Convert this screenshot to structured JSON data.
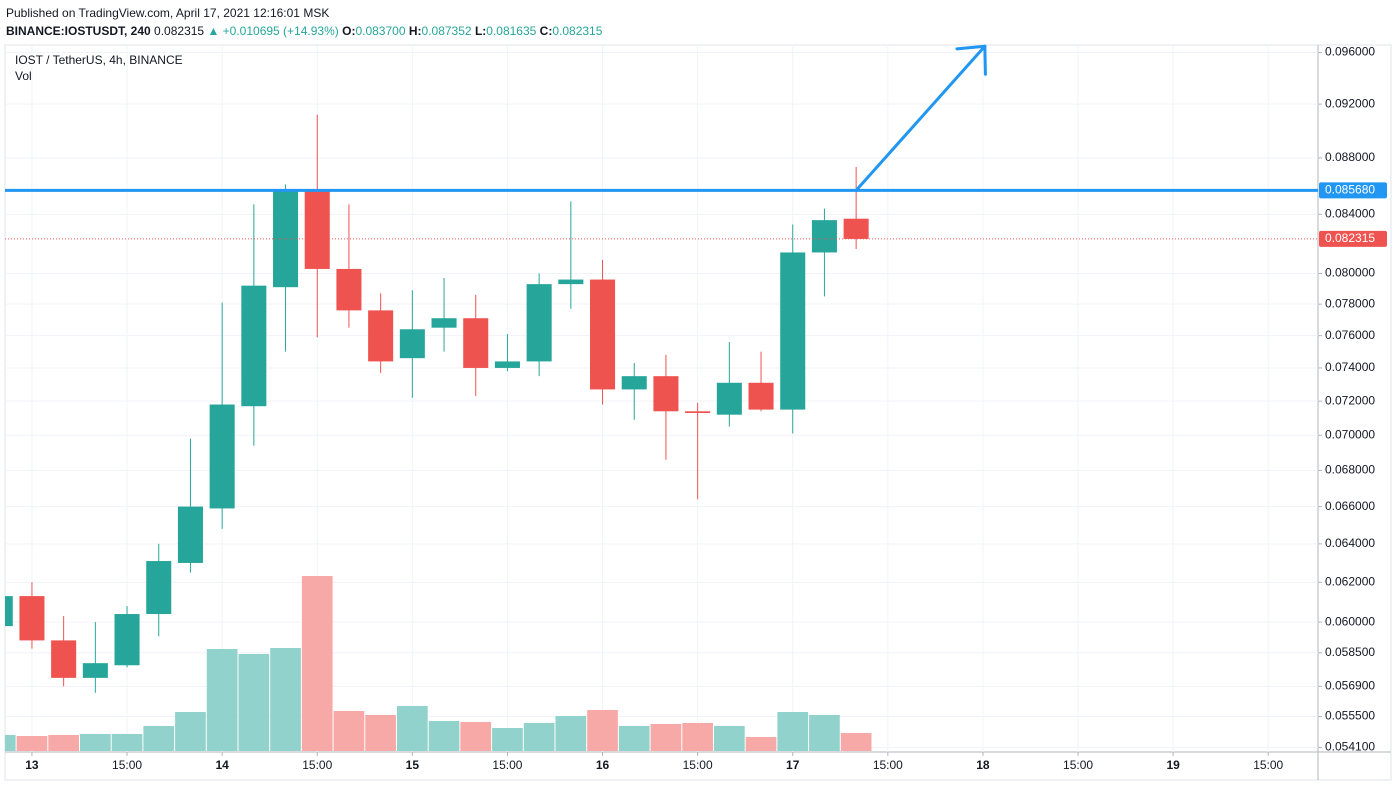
{
  "header": {
    "published": "Published on TradingView.com, April 17, 2021 12:16:01 MSK",
    "symbol": "BINANCE:IOSTUSDT, 240",
    "last": "0.082315",
    "change": "▲ +0.010695 (+14.93%)",
    "ohlc": [
      {
        "key": "O:",
        "value": "0.083700"
      },
      {
        "key": "H:",
        "value": "0.087352"
      },
      {
        "key": "L:",
        "value": "0.081635"
      },
      {
        "key": "C:",
        "value": "0.082315"
      }
    ]
  },
  "chart_data": {
    "type": "candlestick",
    "title": "IOST / TetherUS, 4h, BINANCE",
    "volume_label": "Vol",
    "log_scale": true,
    "grid": true,
    "up_color": "#26a69a",
    "down_color": "#ef5350",
    "volume_up_color": "#92d2cc",
    "volume_down_color": "#f7a9a7",
    "x": [
      -1,
      0,
      1,
      2,
      3,
      4,
      5,
      6,
      7,
      8,
      9,
      10,
      11,
      12,
      13,
      14,
      15,
      16,
      17,
      18,
      19,
      20,
      21,
      22,
      23,
      24,
      25,
      26
    ],
    "open": [
      0.0598,
      0.0613,
      0.0591,
      0.0573,
      0.0579,
      0.0604,
      0.063,
      0.0659,
      0.0717,
      0.0791,
      0.0857,
      0.0803,
      0.0776,
      0.0746,
      0.0765,
      0.0771,
      0.074,
      0.0744,
      0.0793,
      0.0796,
      0.0727,
      0.0735,
      0.0714,
      0.0712,
      0.0731,
      0.0715,
      0.0814,
      0.0837
    ],
    "high": [
      0.0616,
      0.062,
      0.0603,
      0.06,
      0.0608,
      0.064,
      0.0698,
      0.0781,
      0.0847,
      0.0861,
      0.0912,
      0.0847,
      0.0787,
      0.0789,
      0.0797,
      0.0786,
      0.0761,
      0.08,
      0.0849,
      0.0809,
      0.0743,
      0.0748,
      0.0719,
      0.0756,
      0.075,
      0.0833,
      0.0844,
      0.087352
    ],
    "low": [
      0.0596,
      0.0587,
      0.0569,
      0.0566,
      0.0578,
      0.0593,
      0.0625,
      0.0648,
      0.0694,
      0.075,
      0.0759,
      0.0765,
      0.0737,
      0.0722,
      0.075,
      0.0723,
      0.0738,
      0.0735,
      0.0777,
      0.0718,
      0.0709,
      0.0686,
      0.0664,
      0.0705,
      0.0714,
      0.0701,
      0.0785,
      0.081635
    ],
    "close": [
      0.0613,
      0.0591,
      0.0573,
      0.058,
      0.0604,
      0.0631,
      0.066,
      0.0718,
      0.0792,
      0.0857,
      0.0803,
      0.0776,
      0.0744,
      0.0764,
      0.0771,
      0.074,
      0.0744,
      0.0793,
      0.0796,
      0.0727,
      0.0735,
      0.0714,
      0.0713,
      0.0731,
      0.0715,
      0.0814,
      0.0836,
      0.082315
    ],
    "volume": [
      16,
      15,
      16,
      17,
      17,
      25,
      39,
      102,
      97,
      103,
      175,
      40,
      36,
      45,
      30,
      29,
      23,
      28,
      35,
      41,
      25,
      27,
      28,
      25,
      14,
      39,
      36,
      18
    ],
    "xlim": [
      -0.85,
      40.57
    ],
    "xticks": [
      {
        "value": 0,
        "label": "13"
      },
      {
        "value": 3,
        "label": "15:00"
      },
      {
        "value": 6,
        "label": "14"
      },
      {
        "value": 9,
        "label": "15:00"
      },
      {
        "value": 12,
        "label": "15"
      },
      {
        "value": 15,
        "label": "15:00"
      },
      {
        "value": 18,
        "label": "16"
      },
      {
        "value": 21,
        "label": "15:00"
      },
      {
        "value": 24,
        "label": "17"
      },
      {
        "value": 27,
        "label": "15:00"
      },
      {
        "value": 30,
        "label": "18"
      },
      {
        "value": 33,
        "label": "15:00"
      },
      {
        "value": 36,
        "label": "19"
      },
      {
        "value": 39,
        "label": "15:00"
      }
    ],
    "ylim": [
      0.0539,
      0.0966
    ],
    "yticks": [
      {
        "value": 0.096,
        "label": "0.096000"
      },
      {
        "value": 0.092,
        "label": "0.092000"
      },
      {
        "value": 0.088,
        "label": "0.088000"
      },
      {
        "value": 0.084,
        "label": "0.084000"
      },
      {
        "value": 0.08,
        "label": "0.080000"
      },
      {
        "value": 0.078,
        "label": "0.078000"
      },
      {
        "value": 0.076,
        "label": "0.076000"
      },
      {
        "value": 0.074,
        "label": "0.074000"
      },
      {
        "value": 0.072,
        "label": "0.072000"
      },
      {
        "value": 0.07,
        "label": "0.070000"
      },
      {
        "value": 0.068,
        "label": "0.068000"
      },
      {
        "value": 0.066,
        "label": "0.066000"
      },
      {
        "value": 0.064,
        "label": "0.064000"
      },
      {
        "value": 0.062,
        "label": "0.062000"
      },
      {
        "value": 0.06,
        "label": "0.060000"
      },
      {
        "value": 0.0585,
        "label": "0.058500"
      },
      {
        "value": 0.0569,
        "label": "0.056900"
      },
      {
        "value": 0.0555,
        "label": "0.055500"
      },
      {
        "value": 0.0541,
        "label": "0.054100"
      }
    ],
    "horizontal_lines": [
      {
        "value": 0.08568,
        "label": "0.085680",
        "color": "#2196f3",
        "style": "solid"
      },
      {
        "value": 0.082315,
        "label": "0.082315",
        "color": "#ef5350",
        "style": "dotted"
      }
    ],
    "trend_arrow": {
      "color": "#2196f3",
      "start": [
        26,
        0.08568
      ],
      "end": [
        30.06,
        0.0965
      ]
    }
  }
}
